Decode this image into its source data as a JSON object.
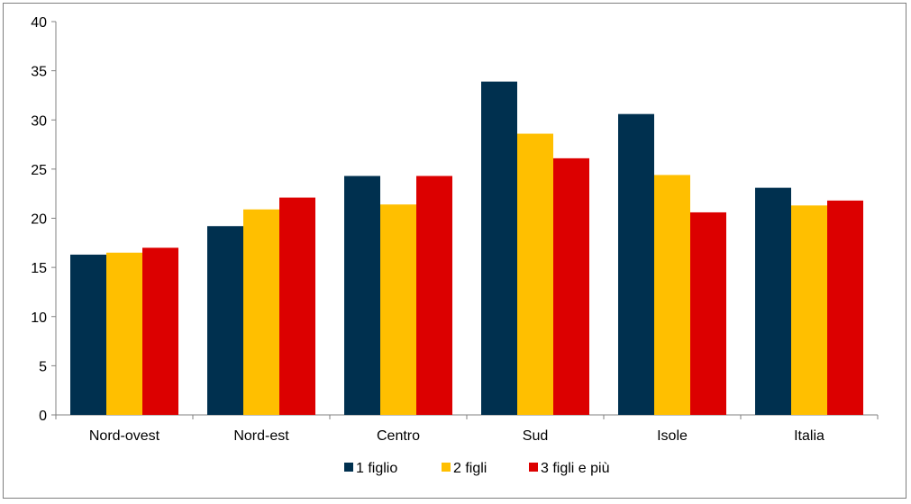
{
  "chart_data": {
    "type": "bar",
    "categories": [
      "Nord-ovest",
      "Nord-est",
      "Centro",
      "Sud",
      "Isole",
      "Italia"
    ],
    "series": [
      {
        "name": "1 figlio",
        "color": "#00304f",
        "values": [
          16.3,
          19.2,
          24.3,
          33.9,
          30.6,
          23.1
        ]
      },
      {
        "name": "2 figli",
        "color": "#ffbf00",
        "values": [
          16.5,
          20.9,
          21.4,
          28.6,
          24.4,
          21.3
        ]
      },
      {
        "name": "3 figli e più",
        "color": "#dc0000",
        "values": [
          17.0,
          22.1,
          24.3,
          26.1,
          20.6,
          21.8
        ]
      }
    ],
    "ylim": [
      0,
      40
    ],
    "yticks": [
      0,
      5,
      10,
      15,
      20,
      25,
      30,
      35,
      40
    ],
    "grid": false,
    "legend_position": "bottom",
    "title": "",
    "xlabel": "",
    "ylabel": ""
  }
}
